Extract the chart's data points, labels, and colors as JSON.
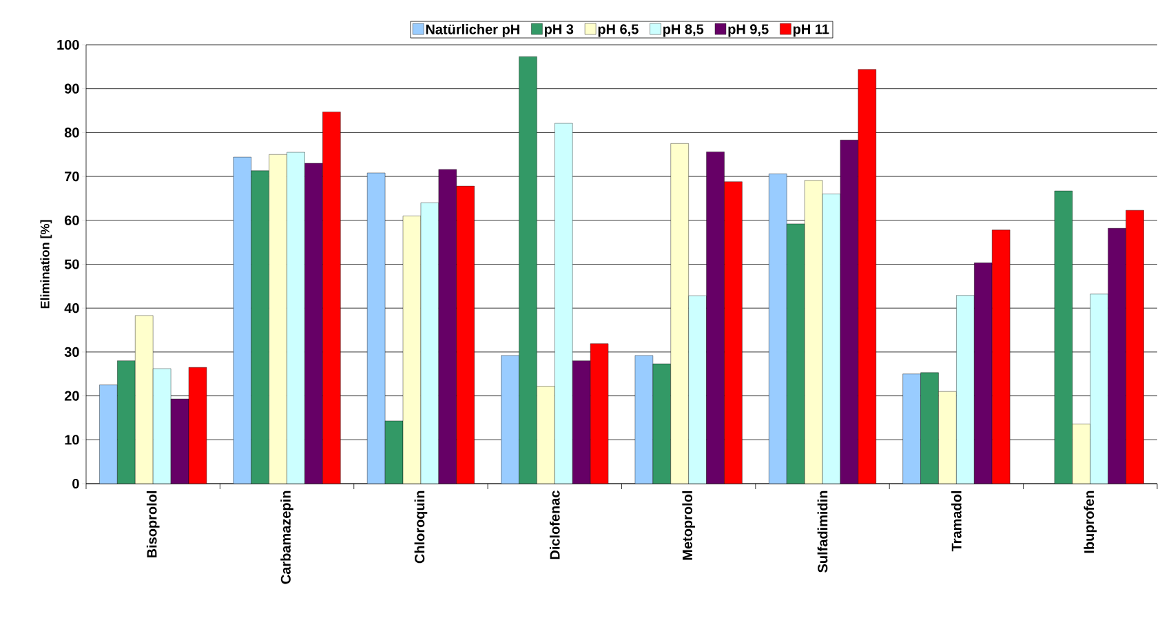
{
  "chart_data": {
    "type": "bar",
    "ylabel": "Elimination [%]",
    "categories": [
      "Bisoprolol",
      "Carbamazepin",
      "Chloroquin",
      "Diclofenac",
      "Metoprolol",
      "Sulfadimidin",
      "Tramadol",
      "Ibuprofen"
    ],
    "series": [
      {
        "name": "Natürlicher pH",
        "color": "#99ccff",
        "values": [
          22.5,
          74.4,
          70.8,
          29.2,
          29.2,
          70.6,
          25.0,
          null
        ]
      },
      {
        "name": "pH 3",
        "color": "#339966",
        "values": [
          28.0,
          71.3,
          14.3,
          97.3,
          27.3,
          59.2,
          25.3,
          66.7
        ]
      },
      {
        "name": "pH 6,5",
        "color": "#ffffcc",
        "values": [
          38.3,
          75.0,
          61.0,
          22.2,
          77.5,
          69.1,
          21.0,
          13.6
        ]
      },
      {
        "name": "pH 8,5",
        "color": "#ccffff",
        "values": [
          26.2,
          75.5,
          64.0,
          82.1,
          42.8,
          66.0,
          42.9,
          43.2
        ]
      },
      {
        "name": "pH 9,5",
        "color": "#660066",
        "values": [
          19.3,
          73.0,
          71.6,
          28.0,
          75.6,
          78.3,
          50.3,
          58.2
        ]
      },
      {
        "name": "pH 11",
        "color": "#ff0000",
        "values": [
          26.5,
          84.7,
          67.8,
          31.9,
          68.8,
          94.4,
          57.8,
          62.3
        ]
      }
    ],
    "ylim": [
      0,
      100
    ],
    "yticks": [
      0,
      10,
      20,
      30,
      40,
      50,
      60,
      70,
      80,
      90,
      100
    ],
    "grid": "y",
    "legend": "top"
  }
}
